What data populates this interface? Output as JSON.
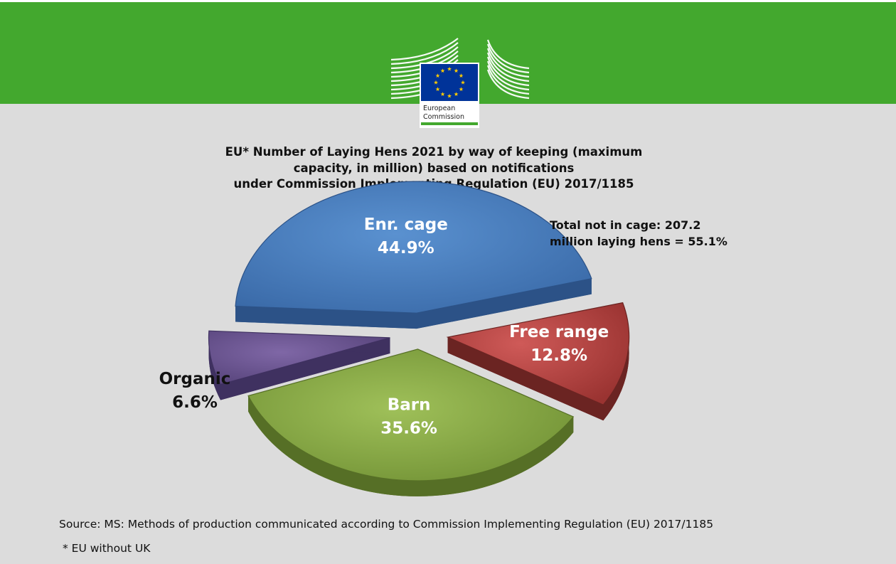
{
  "header": {
    "logo_text_line1": "European",
    "logo_text_line2": "Commission",
    "colors": {
      "band": "#43a82e",
      "eu_blue": "#003399",
      "eu_star": "#ffcc00"
    }
  },
  "chart_data": {
    "type": "pie",
    "title": "EU* Number of Laying Hens 2021  by way of keeping (maximum\ncapacity, in million) based on  notifications\nunder Commission Implementing Regulation (EU) 2017/1185",
    "slices": [
      {
        "name": "Enr. cage",
        "value": 44.9,
        "label": "44.9%",
        "color": "#4a7fc1"
      },
      {
        "name": "Free range",
        "value": 12.8,
        "label": "12.8%",
        "color": "#b8403f"
      },
      {
        "name": "Barn",
        "value": 35.6,
        "label": "35.6%",
        "color": "#8fb04a"
      },
      {
        "name": "Organic",
        "value": 6.6,
        "label": "6.6%",
        "color": "#6b5490"
      }
    ],
    "annotation": "Total not in cage: 207.2\nmillion laying hens = 55.1%",
    "legend": "none"
  },
  "footer": {
    "source": "Source: MS: Methods of production communicated according to Commission Implementing Regulation (EU) 2017/1185",
    "footnote": "* EU without UK"
  }
}
